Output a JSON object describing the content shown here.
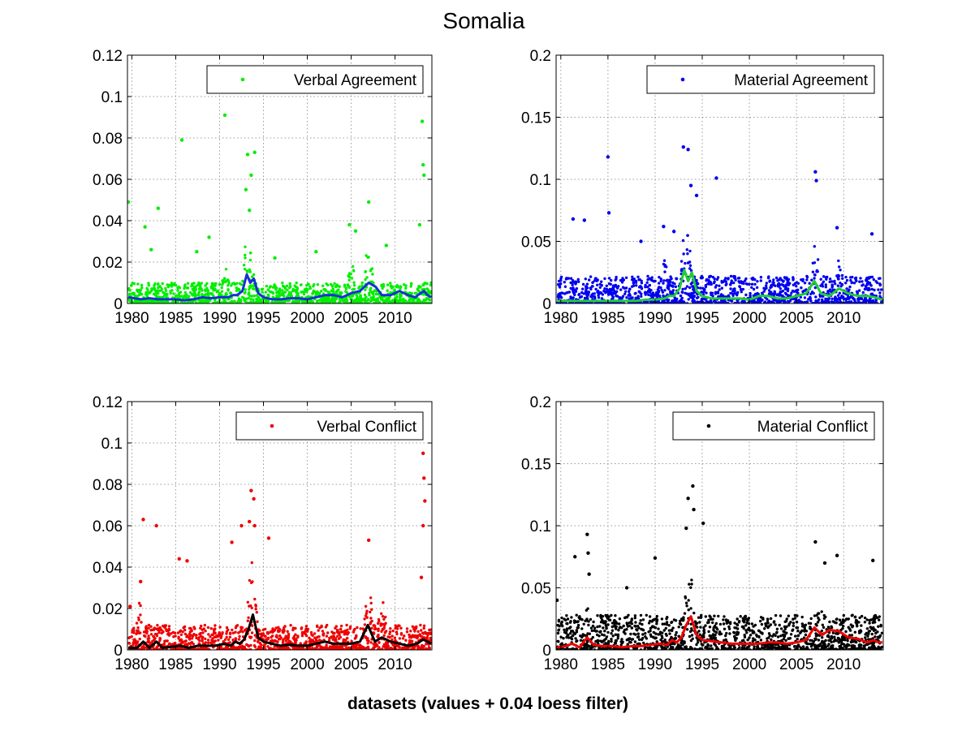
{
  "figure": {
    "title": "Somalia",
    "xlabel": "datasets (values + 0.04 loess filter)"
  },
  "chart_data": [
    {
      "type": "scatter",
      "legend": "Verbal Agreement",
      "legend_placement": "top-right",
      "grid": true,
      "xlim": [
        1979.5,
        2014.2
      ],
      "ylim": [
        0,
        0.12
      ],
      "xticks": [
        1980,
        1985,
        1990,
        1995,
        2000,
        2005,
        2010
      ],
      "yticks": [
        0,
        0.02,
        0.04,
        0.06,
        0.08,
        0.1,
        0.12
      ],
      "yticklabels": [
        "0",
        "0.02",
        "0.04",
        "0.06",
        "0.08",
        "0.1",
        "0.12"
      ],
      "point_color": "#00ee00",
      "line_color": "#1a2fd6",
      "series": [
        {
          "kind": "points",
          "x": [
            1979.6,
            1985.7,
            1990.6,
            1993.2,
            1993.6,
            1994.0,
            2007.0,
            2013.1,
            2013.2,
            2013.3,
            1983.0,
            1981.5,
            1988.8,
            1993.0,
            1993.4,
            2004.8,
            2012.8,
            2005.5,
            2009.0,
            2001.0,
            1996.3,
            1982.2,
            1987.4
          ],
          "y": [
            0.049,
            0.079,
            0.091,
            0.072,
            0.062,
            0.073,
            0.049,
            0.088,
            0.067,
            0.062,
            0.046,
            0.037,
            0.032,
            0.055,
            0.045,
            0.038,
            0.038,
            0.035,
            0.028,
            0.025,
            0.022,
            0.026,
            0.025
          ]
        },
        {
          "kind": "loess",
          "x": [
            1979.6,
            1981,
            1982,
            1983,
            1984,
            1985,
            1986,
            1987,
            1988,
            1989,
            1990,
            1991,
            1991.5,
            1992,
            1992.6,
            1993.1,
            1993.5,
            1993.9,
            1994.4,
            1995,
            1996,
            1997,
            1998,
            1999,
            2000,
            2001,
            2002,
            2003,
            2004,
            2005,
            2006,
            2007,
            2007.8,
            2008.5,
            2009.5,
            2010.5,
            2011.5,
            2012.3,
            2012.9,
            2013.3,
            2013.7,
            2014.1
          ],
          "y": [
            0.003,
            0.002,
            0.0025,
            0.002,
            0.002,
            0.002,
            0.0015,
            0.002,
            0.003,
            0.0025,
            0.003,
            0.003,
            0.004,
            0.004,
            0.006,
            0.014,
            0.01,
            0.012,
            0.005,
            0.003,
            0.002,
            0.002,
            0.0025,
            0.0025,
            0.002,
            0.003,
            0.004,
            0.004,
            0.003,
            0.005,
            0.006,
            0.01,
            0.008,
            0.004,
            0.004,
            0.006,
            0.004,
            0.003,
            0.005,
            0.006,
            0.004,
            0.003
          ]
        }
      ],
      "noise": {
        "base_max": 0.01,
        "spike_years": [
          [
            1993.3,
            0.045
          ],
          [
            2007.0,
            0.03
          ],
          [
            2005.0,
            0.02
          ],
          [
            1990.7,
            0.02
          ]
        ],
        "density": 1300
      }
    },
    {
      "type": "scatter",
      "legend": "Material Agreement",
      "legend_placement": "top-right",
      "grid": true,
      "xlim": [
        1979.5,
        2014.2
      ],
      "ylim": [
        0,
        0.2
      ],
      "xticks": [
        1980,
        1985,
        1990,
        1995,
        2000,
        2005,
        2010
      ],
      "yticks": [
        0,
        0.05,
        0.1,
        0.15,
        0.2
      ],
      "yticklabels": [
        "0",
        "0.05",
        "0.1",
        "0.15",
        "0.2"
      ],
      "point_color": "#0000ee",
      "line_color": "#22cc33",
      "series": [
        {
          "kind": "points",
          "x": [
            1985.0,
            1985.1,
            1993.0,
            1993.5,
            1993.8,
            1994.4,
            1996.5,
            2007.0,
            2007.1,
            2013.0,
            1981.3,
            1982.5,
            1992.0,
            1990.9,
            2009.3,
            1988.5
          ],
          "y": [
            0.118,
            0.073,
            0.126,
            0.124,
            0.095,
            0.087,
            0.101,
            0.106,
            0.099,
            0.056,
            0.068,
            0.067,
            0.058,
            0.062,
            0.061,
            0.05
          ]
        },
        {
          "kind": "loess",
          "x": [
            1979.6,
            1981,
            1982,
            1983,
            1984,
            1985,
            1986,
            1987,
            1988,
            1989,
            1990,
            1991,
            1991.5,
            1992,
            1992.6,
            1993.1,
            1993.5,
            1993.9,
            1994.4,
            1995,
            1996,
            1997,
            1998,
            1999,
            2000,
            2001,
            2002,
            2003,
            2004,
            2005,
            2006,
            2006.9,
            2007.6,
            2008.5,
            2009.5,
            2010.5,
            2011.5,
            2012.5,
            2013.3,
            2014.1
          ],
          "y": [
            0.002,
            0.002,
            0.002,
            0.002,
            0.002,
            0.002,
            0.002,
            0.002,
            0.002,
            0.003,
            0.003,
            0.004,
            0.006,
            0.006,
            0.012,
            0.027,
            0.018,
            0.025,
            0.01,
            0.006,
            0.004,
            0.004,
            0.004,
            0.004,
            0.003,
            0.006,
            0.006,
            0.004,
            0.004,
            0.006,
            0.008,
            0.018,
            0.008,
            0.006,
            0.012,
            0.008,
            0.006,
            0.006,
            0.005,
            0.003
          ]
        }
      ],
      "noise": {
        "base_max": 0.022,
        "spike_years": [
          [
            1993.3,
            0.07
          ],
          [
            2007.0,
            0.05
          ],
          [
            2009.5,
            0.035
          ],
          [
            1991.0,
            0.035
          ]
        ],
        "density": 1400
      }
    },
    {
      "type": "scatter",
      "legend": "Verbal Conflict",
      "legend_placement": "top-right",
      "grid": true,
      "xlim": [
        1979.5,
        2014.2
      ],
      "ylim": [
        0,
        0.12
      ],
      "xticks": [
        1980,
        1985,
        1990,
        1995,
        2000,
        2005,
        2010
      ],
      "yticks": [
        0,
        0.02,
        0.04,
        0.06,
        0.08,
        0.1,
        0.12
      ],
      "yticklabels": [
        "0",
        "0.02",
        "0.04",
        "0.06",
        "0.08",
        "0.1",
        "0.12"
      ],
      "point_color": "#ee0000",
      "line_color": "#000000",
      "series": [
        {
          "kind": "points",
          "x": [
            1981.3,
            1982.8,
            1993.6,
            1993.9,
            1993.4,
            1994.0,
            1995.6,
            2007.0,
            2013.2,
            2013.3,
            2013.4,
            2013.2,
            1985.4,
            1986.3,
            1991.4,
            1992.5,
            1981.0,
            1979.8,
            2013.0
          ],
          "y": [
            0.063,
            0.06,
            0.077,
            0.073,
            0.062,
            0.06,
            0.054,
            0.053,
            0.095,
            0.083,
            0.072,
            0.06,
            0.044,
            0.043,
            0.052,
            0.06,
            0.033,
            0.021,
            0.035
          ]
        },
        {
          "kind": "loess",
          "x": [
            1979.6,
            1980.6,
            1981.3,
            1982,
            1982.8,
            1983.5,
            1984.5,
            1985.5,
            1986.5,
            1987.5,
            1988.5,
            1989.5,
            1990.5,
            1991.3,
            1991.8,
            1992.3,
            1992.8,
            1993.3,
            1993.8,
            1994.4,
            1995,
            1996,
            1997,
            1998,
            1999,
            2000,
            2001,
            2002,
            2003,
            2004,
            2005,
            2006,
            2006.9,
            2007.7,
            2008.5,
            2009.5,
            2010.5,
            2011.5,
            2012.5,
            2013.2,
            2013.7,
            2014.1
          ],
          "y": [
            0.001,
            0.001,
            0.004,
            0.001,
            0.004,
            0.001,
            0.0015,
            0.002,
            0.001,
            0.002,
            0.002,
            0.002,
            0.003,
            0.002,
            0.004,
            0.003,
            0.005,
            0.01,
            0.017,
            0.006,
            0.004,
            0.003,
            0.002,
            0.0025,
            0.002,
            0.002,
            0.003,
            0.004,
            0.003,
            0.003,
            0.003,
            0.004,
            0.012,
            0.004,
            0.006,
            0.004,
            0.003,
            0.002,
            0.003,
            0.005,
            0.004,
            0.003
          ]
        }
      ],
      "noise": {
        "base_max": 0.012,
        "spike_years": [
          [
            1993.7,
            0.045
          ],
          [
            2007.0,
            0.03
          ],
          [
            2008.5,
            0.025
          ],
          [
            1981.0,
            0.025
          ]
        ],
        "density": 1300
      }
    },
    {
      "type": "scatter",
      "legend": "Material Conflict",
      "legend_placement": "top-right",
      "grid": true,
      "xlim": [
        1979.5,
        2014.2
      ],
      "ylim": [
        0,
        0.2
      ],
      "xticks": [
        1980,
        1985,
        1990,
        1995,
        2000,
        2005,
        2010
      ],
      "yticks": [
        0,
        0.05,
        0.1,
        0.15,
        0.2
      ],
      "yticklabels": [
        "0",
        "0.05",
        "0.1",
        "0.15",
        "0.2"
      ],
      "point_color": "#000000",
      "line_color": "#ee0000",
      "series": [
        {
          "kind": "points",
          "x": [
            1982.8,
            1982.9,
            1993.5,
            1994.0,
            1994.1,
            1995.1,
            1993.3,
            2007.0,
            2009.3,
            2013.1,
            1990.0,
            1981.5,
            1983.0,
            1979.6,
            1987.0,
            2008.0
          ],
          "y": [
            0.093,
            0.078,
            0.122,
            0.132,
            0.113,
            0.102,
            0.098,
            0.087,
            0.076,
            0.072,
            0.074,
            0.075,
            0.061,
            0.04,
            0.05,
            0.07
          ]
        },
        {
          "kind": "loess",
          "x": [
            1979.6,
            1980.5,
            1981.2,
            1982,
            1982.8,
            1983.5,
            1984.5,
            1985.5,
            1986.5,
            1987.5,
            1988.5,
            1989.5,
            1990.5,
            1991.3,
            1991.8,
            1992.3,
            1992.8,
            1993.3,
            1993.8,
            1994.4,
            1995,
            1996,
            1997,
            1998,
            1999,
            2000,
            2001,
            2002,
            2003,
            2004,
            2005,
            2006,
            2006.9,
            2007.7,
            2008.5,
            2009.5,
            2010.5,
            2011.5,
            2012.5,
            2013.2,
            2013.7,
            2014.1
          ],
          "y": [
            0.002,
            0.003,
            0.005,
            0.002,
            0.01,
            0.004,
            0.003,
            0.003,
            0.002,
            0.003,
            0.003,
            0.004,
            0.005,
            0.004,
            0.008,
            0.006,
            0.01,
            0.02,
            0.027,
            0.012,
            0.008,
            0.007,
            0.006,
            0.005,
            0.005,
            0.005,
            0.005,
            0.006,
            0.006,
            0.005,
            0.006,
            0.008,
            0.018,
            0.012,
            0.016,
            0.015,
            0.01,
            0.009,
            0.006,
            0.008,
            0.006,
            0.006
          ]
        }
      ],
      "noise": {
        "base_max": 0.028,
        "spike_years": [
          [
            1993.6,
            0.07
          ],
          [
            2007.5,
            0.04
          ],
          [
            2009.5,
            0.03
          ],
          [
            1982.8,
            0.035
          ]
        ],
        "density": 1500
      }
    }
  ]
}
